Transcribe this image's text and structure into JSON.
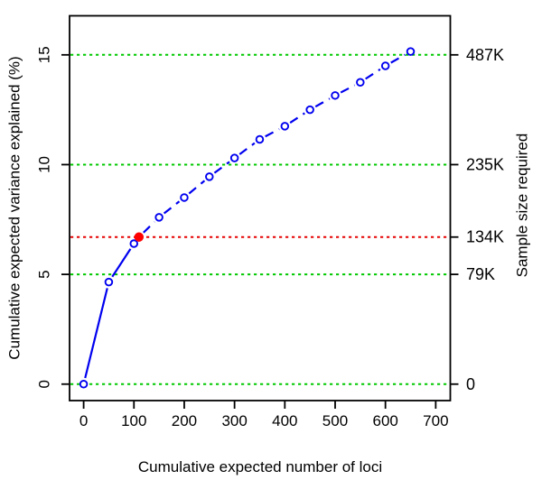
{
  "chart_data": {
    "type": "line",
    "xlabel": "Cumulative expected number of loci",
    "ylabel_left": "Cumulative expected variance explained (%)",
    "ylabel_right": "Sample size required",
    "xlim": [
      -28,
      729
    ],
    "ylim": [
      -0.75,
      16.78
    ],
    "x_ticks": [
      0,
      100,
      200,
      300,
      400,
      500,
      600,
      700
    ],
    "y_ticks_left": [
      0,
      5,
      10,
      15
    ],
    "y_ticks_right": [
      {
        "value": 0,
        "label": "0"
      },
      {
        "value": 5,
        "label": "79K"
      },
      {
        "value": 6.7,
        "label": "134K"
      },
      {
        "value": 10,
        "label": "235K"
      },
      {
        "value": 15,
        "label": "487K"
      }
    ],
    "gridlines_green": [
      0,
      5,
      10,
      15
    ],
    "gridlines_red": [
      6.7
    ],
    "series": [
      {
        "x": [
          0,
          50,
          100,
          150,
          200,
          250,
          300,
          350,
          400,
          450,
          500,
          550,
          600,
          650
        ],
        "y": [
          0,
          4.65,
          6.4,
          7.6,
          8.5,
          9.45,
          10.3,
          11.15,
          11.75,
          12.5,
          13.15,
          13.75,
          14.5,
          15.15
        ],
        "marker": "open-circle",
        "line_solid_until_x": 110
      }
    ],
    "highlight_point": {
      "x": 110,
      "y": 6.7
    },
    "colors": {
      "series": "#0000F0",
      "highlight": "#FF0000",
      "grid_green": "#00C800",
      "grid_red": "#E60000",
      "axis": "#000000",
      "background": "#FFFFFF"
    }
  }
}
